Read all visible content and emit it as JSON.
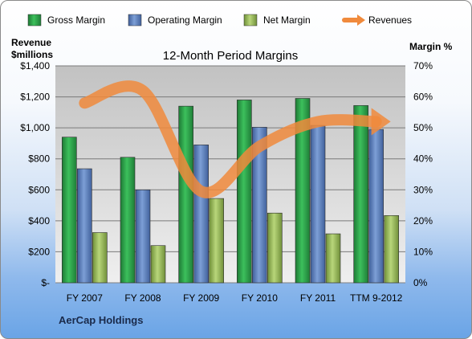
{
  "chart_data": {
    "type": "bar",
    "title": "12-Month Period Margins",
    "company": "AerCap Holdings",
    "categories": [
      "FY 2007",
      "FY 2008",
      "FY 2009",
      "FY 2010",
      "FY 2011",
      "TTM 9-2012"
    ],
    "left_axis": {
      "label_line1": "Revenue",
      "label_line2": "$millions",
      "ylim": [
        0,
        1400
      ],
      "ticks": [
        "$-",
        "$200",
        "$400",
        "$600",
        "$800",
        "$1,000",
        "$1,200",
        "$1,400"
      ]
    },
    "right_axis": {
      "label": "Margin %",
      "ylim": [
        0,
        70
      ],
      "ticks": [
        "0%",
        "10%",
        "20%",
        "30%",
        "40%",
        "50%",
        "60%",
        "70%"
      ]
    },
    "series": [
      {
        "name": "Gross Margin",
        "axis": "right",
        "color": "#2a9a45",
        "values": [
          47,
          40.5,
          57,
          59,
          59.5,
          57.2
        ]
      },
      {
        "name": "Operating Margin",
        "axis": "right",
        "color": "#5b80bf",
        "values": [
          36.8,
          30,
          44.5,
          50.2,
          50.8,
          49.5
        ]
      },
      {
        "name": "Net Margin",
        "axis": "right",
        "color": "#9bbb59",
        "values": [
          16.2,
          12,
          27.2,
          22.5,
          15.8,
          21.7
        ]
      },
      {
        "name": "Revenues",
        "type": "line",
        "axis": "left",
        "color": "#f08a3c",
        "values": [
          1160,
          1240,
          590,
          880,
          1040,
          1040
        ]
      }
    ],
    "grid": true,
    "legend_position": "top"
  }
}
